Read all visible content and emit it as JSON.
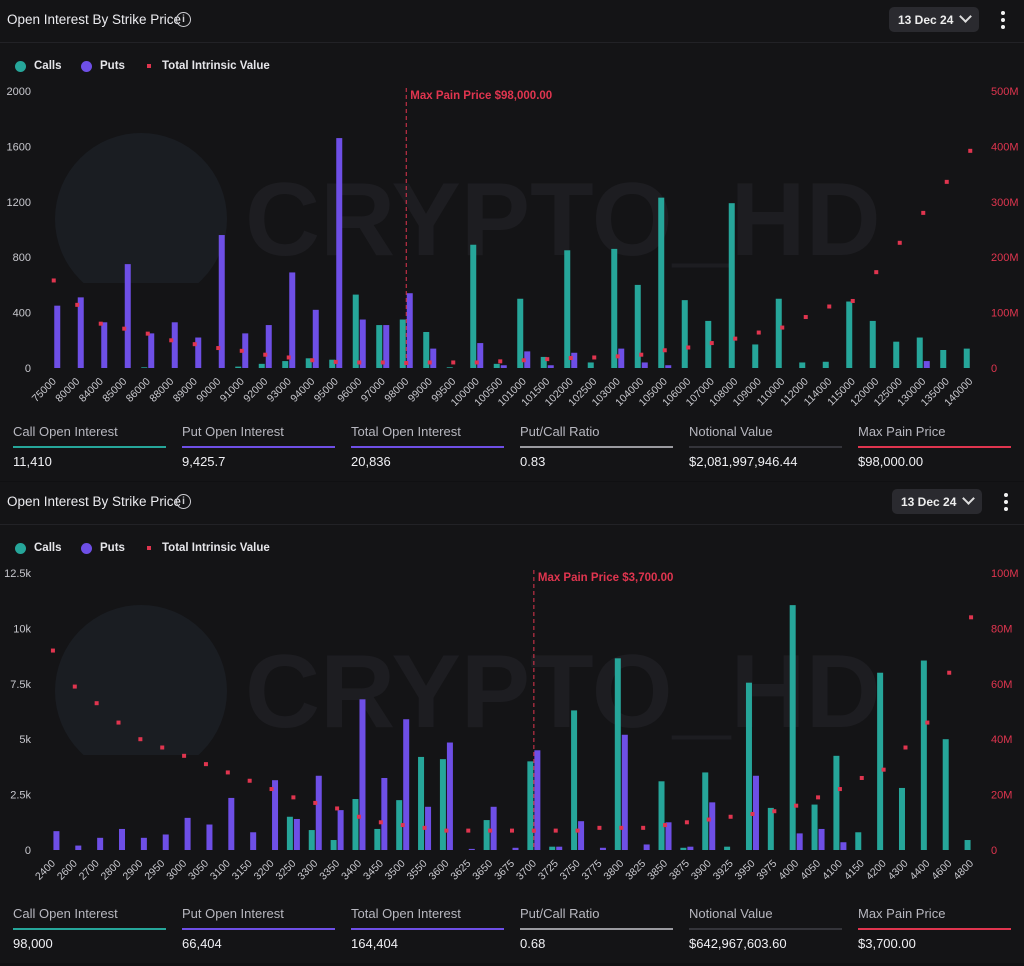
{
  "colors": {
    "calls": "#26a69a",
    "puts": "#6e4fe6",
    "intrinsic": "#e0354f",
    "maxpain": "#e0354f",
    "notional": "#34343a",
    "ratio": "#9a9aa0"
  },
  "panels": [
    {
      "title": "Open Interest By Strike Price",
      "date_label": "13 Dec 24",
      "legend": {
        "calls": "Calls",
        "puts": "Puts",
        "intrinsic": "Total Intrinsic Value"
      },
      "watermark": "CRYPTO_HD",
      "stats": [
        {
          "label": "Call Open Interest",
          "value": "11,410",
          "color": "#26a69a"
        },
        {
          "label": "Put Open Interest",
          "value": "9,425.7",
          "color": "#6e4fe6"
        },
        {
          "label": "Total Open Interest",
          "value": "20,836",
          "color": "#6e4fe6"
        },
        {
          "label": "Put/Call Ratio",
          "value": "0.83",
          "color": "#9a9aa0"
        },
        {
          "label": "Notional Value",
          "value": "$2,081,997,946.44",
          "color": "#34343a"
        },
        {
          "label": "Max Pain Price",
          "value": "$98,000.00",
          "color": "#e0354f"
        }
      ]
    },
    {
      "title": "Open Interest By Strike Price",
      "date_label": "13 Dec 24",
      "legend": {
        "calls": "Calls",
        "puts": "Puts",
        "intrinsic": "Total Intrinsic Value"
      },
      "watermark": "CRYPTO_HD",
      "stats": [
        {
          "label": "Call Open Interest",
          "value": "98,000",
          "color": "#26a69a"
        },
        {
          "label": "Put Open Interest",
          "value": "66,404",
          "color": "#6e4fe6"
        },
        {
          "label": "Total Open Interest",
          "value": "164,404",
          "color": "#6e4fe6"
        },
        {
          "label": "Put/Call Ratio",
          "value": "0.68",
          "color": "#9a9aa0"
        },
        {
          "label": "Notional Value",
          "value": "$642,967,603.60",
          "color": "#34343a"
        },
        {
          "label": "Max Pain Price",
          "value": "$3,700.00",
          "color": "#e0354f"
        }
      ]
    }
  ],
  "chart_data": [
    {
      "type": "bar",
      "categories": [
        "75000",
        "80000",
        "84000",
        "85000",
        "86000",
        "88000",
        "89000",
        "90000",
        "91000",
        "92000",
        "93000",
        "94000",
        "95000",
        "96000",
        "97000",
        "98000",
        "99000",
        "99500",
        "100000",
        "100500",
        "101000",
        "101500",
        "102000",
        "102500",
        "103000",
        "104000",
        "105000",
        "106000",
        "107000",
        "108000",
        "109000",
        "110000",
        "112000",
        "114000",
        "115000",
        "120000",
        "125000",
        "130000",
        "135000",
        "140000"
      ],
      "series": [
        {
          "name": "Calls",
          "axis": "left",
          "values": [
            0,
            0,
            0,
            0,
            5,
            0,
            0,
            0,
            10,
            30,
            50,
            70,
            60,
            530,
            310,
            350,
            260,
            5,
            890,
            30,
            500,
            80,
            850,
            40,
            860,
            600,
            1230,
            490,
            340,
            1190,
            170,
            500,
            40,
            45,
            480,
            340,
            190,
            220,
            130,
            140
          ]
        },
        {
          "name": "Puts",
          "axis": "left",
          "values": [
            450,
            510,
            330,
            750,
            250,
            330,
            220,
            960,
            250,
            310,
            690,
            420,
            1660,
            350,
            310,
            540,
            140,
            0,
            180,
            20,
            120,
            20,
            110,
            0,
            140,
            40,
            20,
            0,
            0,
            0,
            0,
            0,
            0,
            0,
            0,
            0,
            0,
            50,
            0,
            0
          ]
        },
        {
          "name": "Total Intrinsic Value",
          "axis": "right",
          "type": "scatter",
          "values": [
            158,
            114,
            80,
            71,
            62,
            50,
            43,
            36,
            31,
            24,
            19,
            14,
            11,
            10,
            10,
            9,
            10,
            10,
            10,
            12,
            14,
            16,
            18,
            19,
            21,
            24,
            32,
            37,
            45,
            53,
            64,
            73,
            92,
            111,
            121,
            173,
            226,
            280,
            336,
            392
          ]
        }
      ],
      "y_left": {
        "ticks": [
          "0",
          "400",
          "800",
          "1200",
          "1600",
          "2000"
        ],
        "range": [
          0,
          2000
        ]
      },
      "y_right": {
        "ticks": [
          "0",
          "100M",
          "200M",
          "300M",
          "400M",
          "500M"
        ],
        "range": [
          0,
          500
        ],
        "unit": "M"
      },
      "max_pain": {
        "category": "98000",
        "label": "Max Pain Price $98,000.00"
      }
    },
    {
      "type": "bar",
      "categories": [
        "2400",
        "2600",
        "2700",
        "2800",
        "2900",
        "2950",
        "3000",
        "3050",
        "3100",
        "3150",
        "3200",
        "3250",
        "3300",
        "3350",
        "3400",
        "3450",
        "3500",
        "3550",
        "3600",
        "3625",
        "3650",
        "3675",
        "3700",
        "3725",
        "3750",
        "3775",
        "3800",
        "3825",
        "3850",
        "3875",
        "3900",
        "3925",
        "3950",
        "3975",
        "4000",
        "4050",
        "4100",
        "4150",
        "4200",
        "4300",
        "4400",
        "4600",
        "4800"
      ],
      "series": [
        {
          "name": "Calls",
          "axis": "left",
          "values": [
            0,
            0,
            0,
            0,
            0,
            0,
            0,
            0,
            0,
            0,
            0,
            1500,
            900,
            450,
            2300,
            950,
            2250,
            4200,
            4100,
            0,
            1350,
            0,
            4000,
            150,
            6300,
            0,
            8650,
            0,
            3100,
            100,
            3500,
            150,
            7550,
            1900,
            11050,
            2050,
            4250,
            800,
            8000,
            2800,
            8550,
            5000,
            450
          ]
        },
        {
          "name": "Puts",
          "axis": "left",
          "values": [
            850,
            200,
            550,
            950,
            550,
            700,
            1450,
            1150,
            2350,
            800,
            3150,
            1400,
            3350,
            1800,
            6800,
            3250,
            5900,
            1950,
            4850,
            50,
            1950,
            100,
            4500,
            150,
            1300,
            100,
            5200,
            250,
            1250,
            150,
            2150,
            0,
            3350,
            0,
            750,
            950,
            350,
            0,
            0,
            0,
            0,
            0,
            0
          ]
        },
        {
          "name": "Total Intrinsic Value",
          "axis": "right",
          "type": "scatter",
          "values": [
            72,
            59,
            53,
            46,
            40,
            37,
            34,
            31,
            28,
            25,
            22,
            19,
            17,
            15,
            12,
            10,
            9,
            8,
            7,
            7,
            7,
            7,
            7,
            7,
            7,
            8,
            8,
            8,
            9,
            10,
            11,
            12,
            13,
            14,
            16,
            19,
            22,
            26,
            29,
            37,
            46,
            64,
            84
          ]
        }
      ],
      "y_left": {
        "ticks": [
          "0",
          "2.5k",
          "5k",
          "7.5k",
          "10k",
          "12.5k"
        ],
        "range": [
          0,
          12500
        ]
      },
      "y_right": {
        "ticks": [
          "0",
          "20M",
          "40M",
          "60M",
          "80M",
          "100M"
        ],
        "range": [
          0,
          100
        ],
        "unit": "M"
      },
      "max_pain": {
        "category": "3700",
        "label": "Max Pain Price $3,700.00"
      }
    }
  ]
}
